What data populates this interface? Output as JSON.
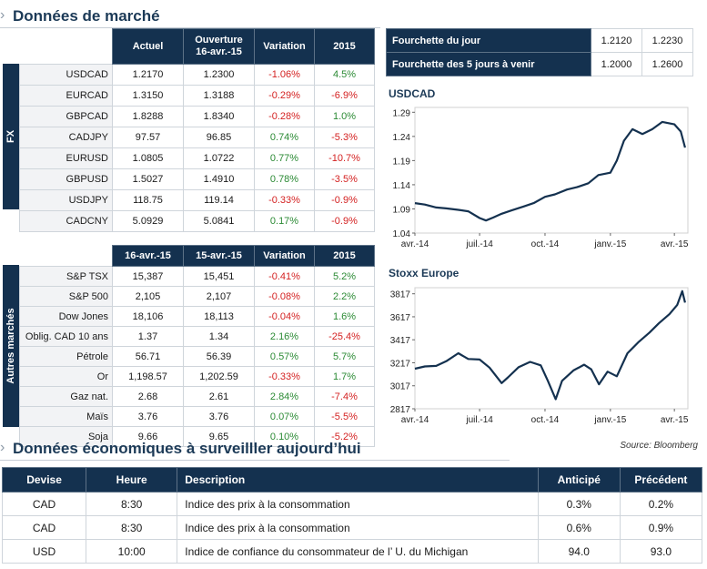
{
  "headers": {
    "market_title": "Données de marché",
    "eco_title": "Données économiques à surveilller aujourd’hui"
  },
  "fx": {
    "side_label": "FX",
    "columns": [
      "Actuel",
      "Ouverture 16-avr.-15",
      "Variation",
      "2015"
    ],
    "rows": [
      {
        "label": "USDCAD",
        "actuel": "1.2170",
        "ouverture": "1.2300",
        "variation": "-1.06%",
        "ytd": "4.5%"
      },
      {
        "label": "EURCAD",
        "actuel": "1.3150",
        "ouverture": "1.3188",
        "variation": "-0.29%",
        "ytd": "-6.9%"
      },
      {
        "label": "GBPCAD",
        "actuel": "1.8288",
        "ouverture": "1.8340",
        "variation": "-0.28%",
        "ytd": "1.0%"
      },
      {
        "label": "CADJPY",
        "actuel": "97.57",
        "ouverture": "96.85",
        "variation": "0.74%",
        "ytd": "-5.3%"
      },
      {
        "label": "EURUSD",
        "actuel": "1.0805",
        "ouverture": "1.0722",
        "variation": "0.77%",
        "ytd": "-10.7%"
      },
      {
        "label": "GBPUSD",
        "actuel": "1.5027",
        "ouverture": "1.4910",
        "variation": "0.78%",
        "ytd": "-3.5%"
      },
      {
        "label": "USDJPY",
        "actuel": "118.75",
        "ouverture": "119.14",
        "variation": "-0.33%",
        "ytd": "-0.9%"
      },
      {
        "label": "CADCNY",
        "actuel": "5.0929",
        "ouverture": "5.0841",
        "variation": "0.17%",
        "ytd": "-0.9%"
      }
    ]
  },
  "other": {
    "side_label": "Autres marchés",
    "columns": [
      "16-avr.-15",
      "15-avr.-15",
      "Variation",
      "2015"
    ],
    "rows": [
      {
        "label": "S&P TSX",
        "d1": "15,387",
        "d2": "15,451",
        "variation": "-0.41%",
        "ytd": "5.2%"
      },
      {
        "label": "S&P 500",
        "d1": "2,105",
        "d2": "2,107",
        "variation": "-0.08%",
        "ytd": "2.2%"
      },
      {
        "label": "Dow Jones",
        "d1": "18,106",
        "d2": "18,113",
        "variation": "-0.04%",
        "ytd": "1.6%"
      },
      {
        "label": "Oblig. CAD 10 ans",
        "d1": "1.37",
        "d2": "1.34",
        "variation": "2.16%",
        "ytd": "-25.4%"
      },
      {
        "label": "Pétrole",
        "d1": "56.71",
        "d2": "56.39",
        "variation": "0.57%",
        "ytd": "5.7%"
      },
      {
        "label": "Or",
        "d1": "1,198.57",
        "d2": "1,202.59",
        "variation": "-0.33%",
        "ytd": "1.7%"
      },
      {
        "label": "Gaz nat.",
        "d1": "2.68",
        "d2": "2.61",
        "variation": "2.84%",
        "ytd": "-7.4%"
      },
      {
        "label": "Maïs",
        "d1": "3.76",
        "d2": "3.76",
        "variation": "0.07%",
        "ytd": "-5.5%"
      },
      {
        "label": "Soja",
        "d1": "9.66",
        "d2": "9.65",
        "variation": "0.10%",
        "ytd": "-5.2%"
      }
    ]
  },
  "ranges": [
    {
      "label": "Fourchette du jour",
      "low": "1.2120",
      "high": "1.2230"
    },
    {
      "label": "Fourchette des 5 jours à venir",
      "low": "1.2000",
      "high": "1.2600"
    }
  ],
  "source": "Source: Bloomberg",
  "economic": {
    "columns": [
      "Devise",
      "Heure",
      "Description",
      "Anticipé",
      "Précédent"
    ],
    "rows": [
      {
        "devise": "CAD",
        "heure": "8:30",
        "description": "Indice des prix à la consommation",
        "anticipe": "0.3%",
        "precedent": "0.2%"
      },
      {
        "devise": "CAD",
        "heure": "8:30",
        "description": "Indice des prix à la consommation",
        "anticipe": "0.6%",
        "precedent": "0.9%"
      },
      {
        "devise": "USD",
        "heure": "10:00",
        "description": "Indice de confiance du consommateur de l’ U. du Michigan",
        "anticipe": "94.0",
        "precedent": "93.0"
      }
    ]
  },
  "colors": {
    "navy": "#14314f",
    "line": "#14314f",
    "positive": "#2b8a34",
    "negative": "#d42222"
  },
  "chart_data": [
    {
      "type": "line",
      "title": "USDCAD",
      "x_tick_labels": [
        "avr.-14",
        "juil.-14",
        "oct.-14",
        "janv.-15",
        "avr.-15"
      ],
      "y_ticks": [
        1.04,
        1.09,
        1.14,
        1.19,
        1.24,
        1.29
      ],
      "ylim": [
        1.04,
        1.3
      ],
      "x": [
        "2014-04-01",
        "2014-04-15",
        "2014-05-01",
        "2014-05-15",
        "2014-06-01",
        "2014-06-15",
        "2014-07-01",
        "2014-07-10",
        "2014-07-20",
        "2014-08-01",
        "2014-08-15",
        "2014-09-01",
        "2014-09-15",
        "2014-10-01",
        "2014-10-15",
        "2014-11-01",
        "2014-11-15",
        "2014-12-01",
        "2014-12-15",
        "2015-01-01",
        "2015-01-10",
        "2015-01-20",
        "2015-02-01",
        "2015-02-15",
        "2015-03-01",
        "2015-03-15",
        "2015-04-01",
        "2015-04-10",
        "2015-04-16"
      ],
      "values": [
        1.102,
        1.099,
        1.093,
        1.091,
        1.088,
        1.085,
        1.071,
        1.066,
        1.072,
        1.08,
        1.087,
        1.095,
        1.102,
        1.115,
        1.12,
        1.13,
        1.135,
        1.143,
        1.16,
        1.165,
        1.19,
        1.231,
        1.255,
        1.245,
        1.255,
        1.27,
        1.265,
        1.25,
        1.217
      ],
      "grid": false
    },
    {
      "type": "line",
      "title": "Stoxx Europe",
      "x_tick_labels": [
        "avr.-14",
        "juil.-14",
        "oct.-14",
        "janv.-15",
        "avr.-15"
      ],
      "y_ticks": [
        2817,
        3017,
        3217,
        3417,
        3617,
        3817
      ],
      "ylim": [
        2817,
        3870
      ],
      "x": [
        "2014-04-01",
        "2014-04-15",
        "2014-05-01",
        "2014-05-15",
        "2014-06-01",
        "2014-06-15",
        "2014-07-01",
        "2014-07-15",
        "2014-08-01",
        "2014-08-10",
        "2014-08-25",
        "2014-09-10",
        "2014-09-25",
        "2014-10-05",
        "2014-10-16",
        "2014-10-25",
        "2014-11-10",
        "2014-11-25",
        "2014-12-05",
        "2014-12-16",
        "2014-12-28",
        "2015-01-10",
        "2015-01-25",
        "2015-02-10",
        "2015-02-25",
        "2015-03-10",
        "2015-03-25",
        "2015-04-05",
        "2015-04-12",
        "2015-04-16"
      ],
      "values": [
        3165,
        3185,
        3190,
        3230,
        3300,
        3250,
        3245,
        3175,
        3040,
        3090,
        3180,
        3225,
        3195,
        3060,
        2900,
        3060,
        3150,
        3200,
        3160,
        3030,
        3140,
        3100,
        3300,
        3400,
        3480,
        3560,
        3640,
        3720,
        3840,
        3740
      ],
      "grid": false
    }
  ]
}
